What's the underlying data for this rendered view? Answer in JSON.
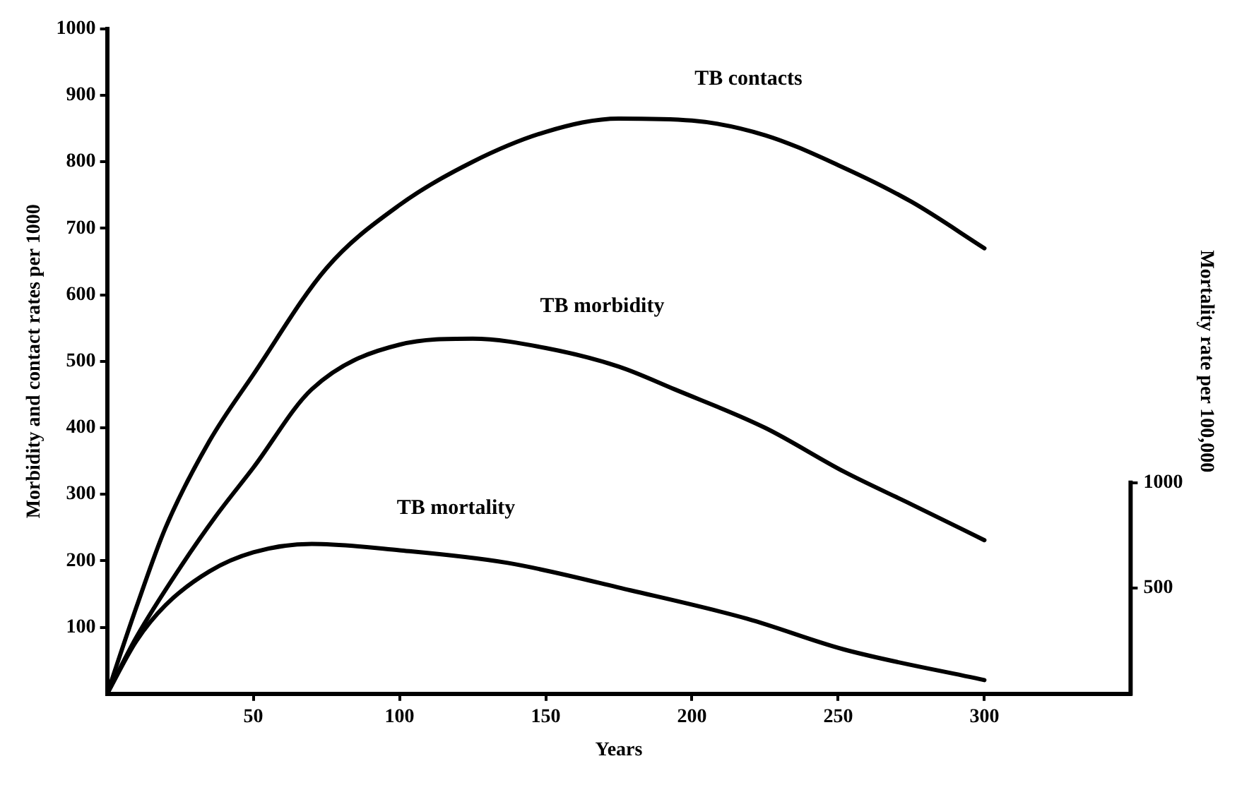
{
  "chart_data": {
    "type": "line",
    "xlabel": "Years",
    "ylabel": "Morbidity and contact rates per 1000",
    "y2label": "Mortality rate per 100,000",
    "xlim": [
      0,
      350
    ],
    "xticks": [
      50,
      100,
      150,
      200,
      250,
      300
    ],
    "ylim": [
      0,
      1000
    ],
    "yticks": [
      100,
      200,
      300,
      400,
      500,
      600,
      700,
      800,
      900,
      1000
    ],
    "y2lim": [
      0,
      3150
    ],
    "y2ticks": [
      500,
      1000
    ],
    "grid": false,
    "legend": false,
    "marker": "none",
    "line_style": "solid",
    "series": [
      {
        "name": "TB contacts",
        "color": "#000000",
        "x": [
          0,
          10,
          20,
          35,
          50,
          75,
          100,
          125,
          150,
          175,
          200,
          225,
          250,
          275,
          300
        ],
        "values": [
          0,
          130,
          250,
          380,
          480,
          640,
          735,
          800,
          845,
          865,
          862,
          840,
          795,
          740,
          670
        ]
      },
      {
        "name": "TB morbidity",
        "color": "#000000",
        "x": [
          0,
          10,
          25,
          37,
          50,
          70,
          100,
          125,
          150,
          175,
          194,
          225,
          252,
          275,
          300
        ],
        "values": [
          0,
          85,
          190,
          266,
          340,
          458,
          525,
          534,
          520,
          492,
          458,
          400,
          334,
          285,
          231
        ]
      },
      {
        "name": "TB mortality",
        "color": "#000000",
        "axis": "y2",
        "x": [
          0,
          10,
          20,
          35,
          50,
          70,
          100,
          137,
          179,
          219,
          252,
          300
        ],
        "values": [
          0,
          250,
          420,
          580,
          670,
          710,
          680,
          620,
          490,
          355,
          210,
          65
        ]
      }
    ]
  }
}
